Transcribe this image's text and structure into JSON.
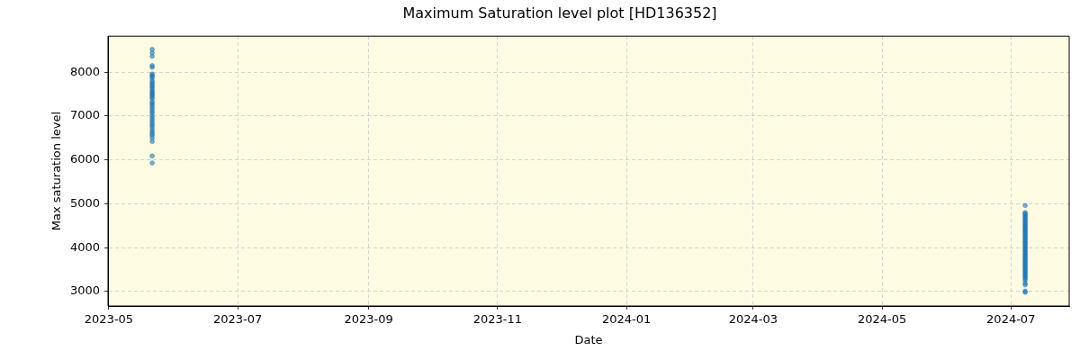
{
  "chart_data": {
    "type": "scatter",
    "title": "Maximum Saturation level plot [HD136352]",
    "xlabel": "Date",
    "ylabel": "Max saturation level",
    "series": [
      {
        "color": "#1f77b4",
        "x": [
          "2023-05-21T12:00",
          "2023-05-21T12:00",
          "2023-05-21T12:00",
          "2023-05-21T12:00",
          "2023-05-21T12:00",
          "2023-05-21T12:00",
          "2023-05-21T12:00",
          "2023-05-21T12:00",
          "2023-05-21T12:00",
          "2023-05-21T12:00",
          "2023-05-21T12:00",
          "2023-05-21T12:00",
          "2023-05-21T12:00",
          "2023-05-21T12:00",
          "2023-05-21T12:00",
          "2023-05-21T12:00",
          "2023-05-21T12:00",
          "2023-05-21T12:00",
          "2023-05-21T12:00",
          "2023-05-21T12:00",
          "2023-05-21T12:00",
          "2023-05-21T12:00",
          "2023-05-21T12:00",
          "2023-05-21T12:00",
          "2023-05-21T12:00",
          "2023-05-21T12:00",
          "2023-05-21T12:00",
          "2023-05-21T12:00",
          "2023-05-21T12:00",
          "2023-05-21T12:00",
          "2023-05-21T12:00",
          "2023-05-21T12:00",
          "2023-05-21T12:00",
          "2023-05-21T12:00",
          "2023-05-21T12:00",
          "2023-05-21T12:00",
          "2023-05-21T12:00",
          "2023-05-21T12:00",
          "2023-05-21T12:00",
          "2023-05-21T12:00",
          "2023-05-21T12:00",
          "2023-05-21T12:00",
          "2024-07-07T18:00",
          "2024-07-07T18:00",
          "2024-07-07T18:00",
          "2024-07-07T18:00",
          "2024-07-07T18:00",
          "2024-07-07T18:00",
          "2024-07-07T18:00",
          "2024-07-07T18:00",
          "2024-07-07T18:00",
          "2024-07-07T18:00",
          "2024-07-07T18:00",
          "2024-07-07T18:00",
          "2024-07-07T18:00",
          "2024-07-07T18:00",
          "2024-07-07T18:00",
          "2024-07-07T18:00",
          "2024-07-07T18:00",
          "2024-07-07T18:00",
          "2024-07-07T18:00",
          "2024-07-07T18:00",
          "2024-07-07T18:00",
          "2024-07-07T18:00",
          "2024-07-07T18:00",
          "2024-07-07T18:00",
          "2024-07-07T18:00",
          "2024-07-07T18:00",
          "2024-07-07T18:00",
          "2024-07-07T18:00",
          "2024-07-07T18:00",
          "2024-07-07T18:00",
          "2024-07-07T18:00",
          "2024-07-07T18:00",
          "2024-07-07T18:00",
          "2024-07-07T18:00",
          "2024-07-07T18:00",
          "2024-07-07T18:00",
          "2024-07-07T18:00",
          "2024-07-07T18:00",
          "2024-07-07T18:00",
          "2024-07-07T18:00",
          "2024-07-07T18:00",
          "2024-07-07T18:00",
          "2024-07-07T18:00",
          "2024-07-07T18:00",
          "2024-07-07T18:00",
          "2024-07-07T18:00",
          "2024-07-07T18:00",
          "2024-07-07T18:00",
          "2024-07-07T18:00",
          "2024-07-07T18:00",
          "2024-07-07T18:00",
          "2024-07-07T18:00",
          "2024-07-07T18:00",
          "2024-07-07T18:00",
          "2024-07-07T18:00",
          "2024-07-07T18:00",
          "2024-07-07T18:00"
        ],
        "values": [
          8520,
          8440,
          8360,
          8150,
          8110,
          7960,
          7930,
          7900,
          7860,
          7800,
          7760,
          7720,
          7680,
          7650,
          7600,
          7560,
          7530,
          7500,
          7470,
          7430,
          7400,
          7330,
          7290,
          7250,
          7200,
          7150,
          7100,
          7060,
          7000,
          6950,
          6900,
          6850,
          6800,
          6760,
          6700,
          6650,
          6600,
          6560,
          6500,
          6420,
          6090,
          5930,
          4960,
          4800,
          4770,
          4740,
          4710,
          4680,
          4650,
          4620,
          4590,
          4560,
          4530,
          4500,
          4470,
          4440,
          4410,
          4380,
          4350,
          4320,
          4290,
          4260,
          4230,
          4200,
          4170,
          4140,
          4110,
          4080,
          4050,
          4020,
          3990,
          3960,
          3930,
          3900,
          3870,
          3840,
          3810,
          3780,
          3750,
          3720,
          3690,
          3660,
          3630,
          3600,
          3570,
          3540,
          3510,
          3480,
          3450,
          3420,
          3390,
          3360,
          3330,
          3300,
          3260,
          3190,
          3150,
          3010,
          2980
        ]
      }
    ],
    "xlim": [
      "2023-04-30T14:00",
      "2024-07-28T14:00"
    ],
    "xticks": [
      "2023-05",
      "2023-07",
      "2023-09",
      "2023-11",
      "2024-01",
      "2024-03",
      "2024-05",
      "2024-07"
    ],
    "ylim": [
      2670,
      8820
    ],
    "yticks": [
      3000,
      4000,
      5000,
      6000,
      7000,
      8000
    ],
    "grid": true,
    "marker": "circle"
  }
}
